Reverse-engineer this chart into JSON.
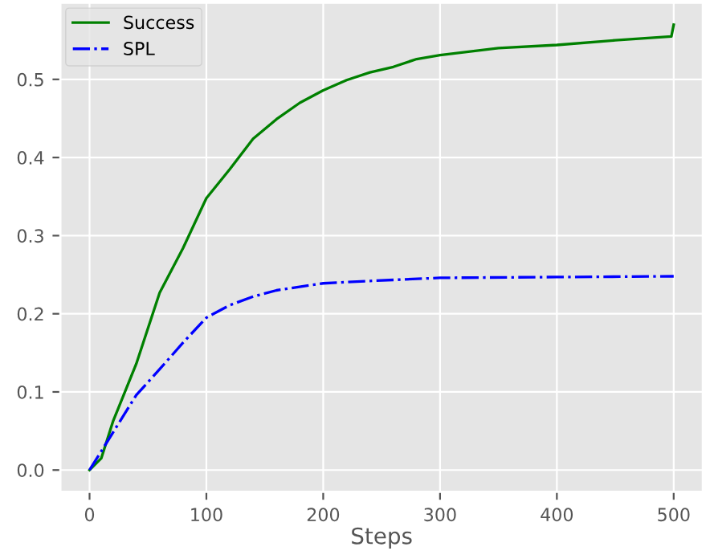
{
  "chart_data": {
    "type": "line",
    "xlabel": "Steps",
    "xlim": [
      -25,
      525
    ],
    "ylim": [
      -0.028,
      0.598
    ],
    "xticks": [
      0,
      100,
      200,
      300,
      400,
      500
    ],
    "yticks": [
      {
        "value": 0,
        "label": "0.0"
      },
      0.1,
      0.2,
      0.3,
      0.4,
      0.5
    ],
    "grid": true,
    "legend": "top left",
    "series": [
      {
        "name": "Success",
        "color": "#008000",
        "line_style": "solid",
        "x": [
          0,
          10,
          20,
          40,
          60,
          80,
          100,
          120,
          140,
          160,
          180,
          200,
          220,
          240,
          260,
          280,
          300,
          350,
          400,
          450,
          498,
          500
        ],
        "values": [
          0,
          0.015,
          0.062,
          0.136,
          0.227,
          0.284,
          0.348,
          0.385,
          0.424,
          0.449,
          0.47,
          0.486,
          0.499,
          0.509,
          0.516,
          0.526,
          0.531,
          0.54,
          0.544,
          0.55,
          0.555,
          0.57
        ]
      },
      {
        "name": "SPL",
        "color": "#0000ff",
        "line_style": "dashdot",
        "x": [
          0,
          20,
          40,
          60,
          80,
          100,
          120,
          140,
          160,
          200,
          240,
          300,
          400,
          500
        ],
        "values": [
          0,
          0.048,
          0.096,
          0.129,
          0.163,
          0.195,
          0.211,
          0.222,
          0.23,
          0.239,
          0.242,
          0.246,
          0.247,
          0.248
        ]
      }
    ]
  }
}
